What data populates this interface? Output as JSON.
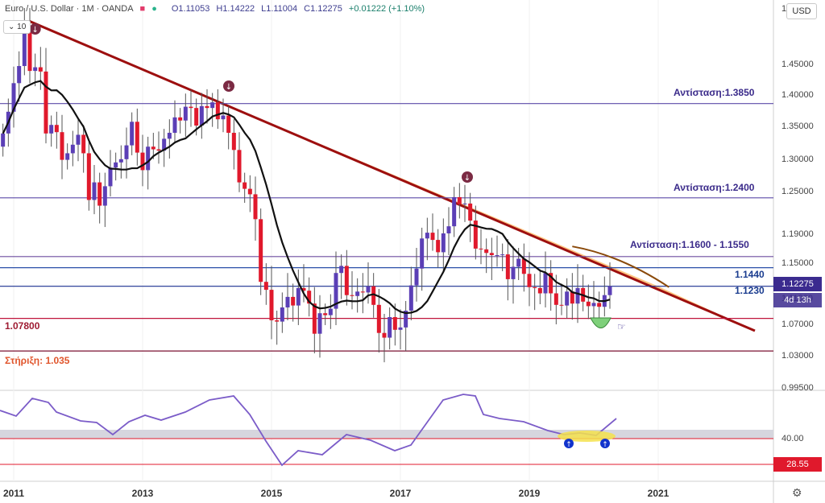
{
  "header": {
    "symbol": "Euro / U.S. Dollar · 1M · OANDA",
    "open": "O1.11053",
    "high": "H1.14222",
    "low": "L1.11004",
    "close": "C1.12275",
    "change": "+0.01222 (+1.10%)"
  },
  "ma_chip": "10",
  "currency_button": "USD",
  "last_price": "1.12275",
  "countdown": "4d 13h",
  "rsi_last": "28.55",
  "colors": {
    "bull": "#5b3fb6",
    "bear": "#e0192c",
    "trendline": "#9d0f0f",
    "channel_fill": "#ffbf73",
    "ma": "#111111",
    "resistance": "#5c4aa8",
    "support": "#9e1b32",
    "rsi_line": "#7b5cc8",
    "blue": "#1a3c8f"
  },
  "annotations": {
    "r1": "Αντίσταση:1.3850",
    "r2": "Αντίσταση:1.2400",
    "r3": "Αντίσταση:1.1600 - 1.1550",
    "l1440": "1.1440",
    "l1230": "1.1230",
    "l1078": "1.07800",
    "support": "Στήριξη: 1.035"
  },
  "chart_data": {
    "type": "candlestick",
    "price_axis": {
      "range": [
        0.995,
        1.5
      ],
      "ticks": [
        "1.50000",
        "1.45000",
        "1.40000",
        "1.35000",
        "1.30000",
        "1.25000",
        "1.19000",
        "1.15000",
        "1.11000",
        "1.07000",
        "1.03000",
        "0.99500"
      ]
    },
    "rsi_axis": {
      "ticks": [
        "40.00"
      ]
    },
    "x_axis": {
      "ticks": [
        "2011",
        "2013",
        "2015",
        "2017",
        "2019",
        "2021"
      ]
    },
    "horizontal_levels": [
      1.385,
      1.24,
      1.158,
      1.144,
      1.123,
      1.078,
      1.035
    ],
    "trendline": {
      "from": [
        "2011-04",
        1.488
      ],
      "to": [
        "2022-06",
        1.06
      ]
    },
    "candles_monthly_close": [
      1.338,
      1.372,
      1.418,
      1.446,
      1.48,
      1.438,
      1.444,
      1.437,
      1.338,
      1.351,
      1.34,
      1.298,
      1.308,
      1.321,
      1.336,
      1.308,
      1.237,
      1.263,
      1.229,
      1.257,
      1.286,
      1.294,
      1.299,
      1.32,
      1.356,
      1.309,
      1.282,
      1.318,
      1.314,
      1.312,
      1.33,
      1.339,
      1.363,
      1.358,
      1.38,
      1.378,
      1.35,
      1.381,
      1.378,
      1.387,
      1.36,
      1.366,
      1.339,
      1.313,
      1.263,
      1.253,
      1.245,
      1.21,
      1.128,
      1.119,
      1.075,
      1.073,
      1.095,
      1.111,
      1.098,
      1.121,
      1.118,
      1.101,
      1.057,
      1.086,
      1.083,
      1.093,
      1.138,
      1.146,
      1.113,
      1.112,
      1.117,
      1.116,
      1.123,
      1.099,
      1.058,
      1.052,
      1.08,
      1.062,
      1.065,
      1.09,
      1.124,
      1.143,
      1.183,
      1.191,
      1.181,
      1.164,
      1.19,
      1.2,
      1.241,
      1.231,
      1.232,
      1.208,
      1.169,
      1.168,
      1.163,
      1.16,
      1.16,
      1.161,
      1.131,
      1.145,
      1.155,
      1.137,
      1.122,
      1.121,
      1.115,
      1.138,
      1.115,
      1.099,
      1.098,
      1.117,
      1.101,
      1.121,
      1.104,
      1.097,
      1.102,
      1.096,
      1.113,
      1.123
    ],
    "moving_average_period": 10
  }
}
